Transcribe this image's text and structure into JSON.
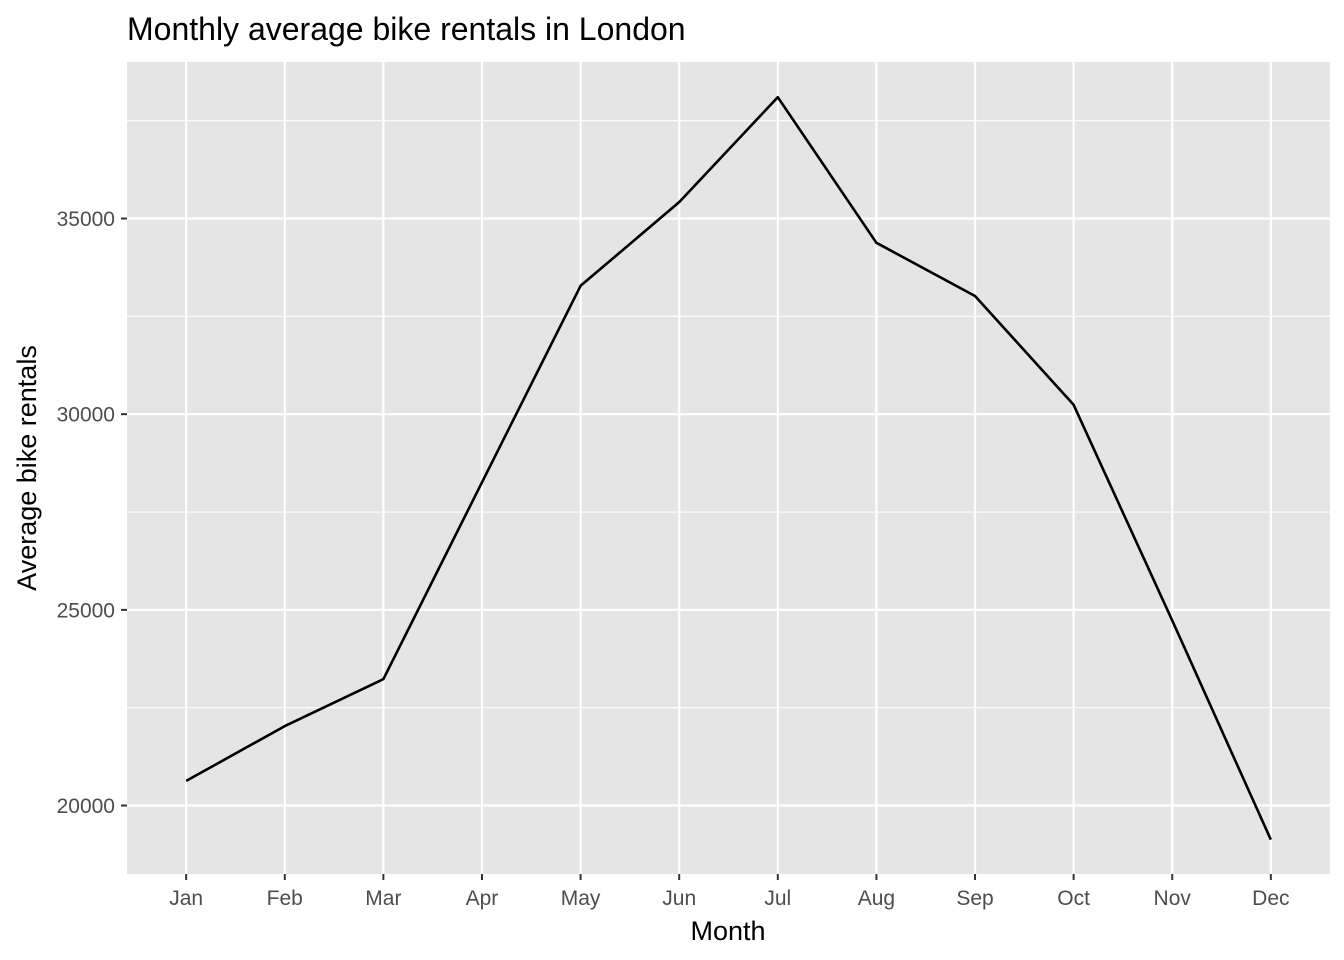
{
  "chart_data": {
    "type": "line",
    "title": "Monthly average bike rentals in London",
    "xlabel": "Month",
    "ylabel": "Average bike rentals",
    "categories": [
      "Jan",
      "Feb",
      "Mar",
      "Apr",
      "May",
      "Jun",
      "Jul",
      "Aug",
      "Sep",
      "Oct",
      "Nov",
      "Dec"
    ],
    "series": [
      {
        "values": [
          20630,
          22030,
          23230,
          28260,
          33280,
          35420,
          38100,
          34380,
          33020,
          30240,
          24730,
          19130
        ],
        "color": "#000000"
      }
    ],
    "y_ticks": [
      20000,
      25000,
      30000,
      35000
    ],
    "y_tick_labels": [
      "20000",
      "25000",
      "30000",
      "35000"
    ],
    "ylim": [
      18250,
      39000
    ],
    "grid": true,
    "legend": "none",
    "panel_background": "#e5e5e5",
    "grid_color": "#ffffff"
  }
}
